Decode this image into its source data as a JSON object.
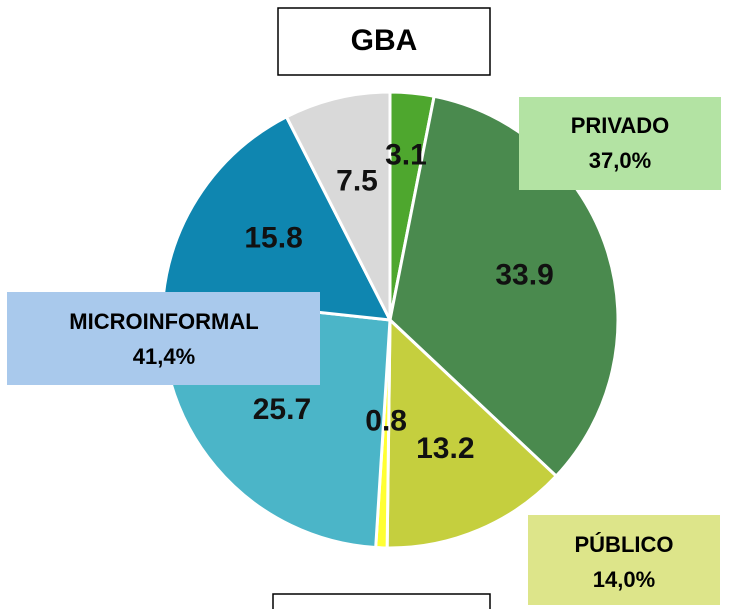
{
  "chart_data": {
    "type": "pie",
    "title": "GBA",
    "categories": [
      null,
      null,
      null,
      null,
      null,
      null,
      null
    ],
    "values": [
      3.1,
      33.9,
      13.2,
      0.8,
      25.7,
      15.8,
      7.5
    ],
    "colors": [
      "#4ea72e",
      "#4a8a4e",
      "#c5cf3e",
      "#ffff33",
      "#4bb5c8",
      "#0f86b0",
      "#d9d9d9"
    ],
    "annotations": [
      {
        "lines": [
          "PRIVADO",
          "37,0%"
        ]
      },
      {
        "lines": [
          "MICROINFORMAL",
          "41,4%"
        ]
      },
      {
        "lines": [
          "PÚBLICO",
          "14,0%"
        ]
      }
    ]
  }
}
